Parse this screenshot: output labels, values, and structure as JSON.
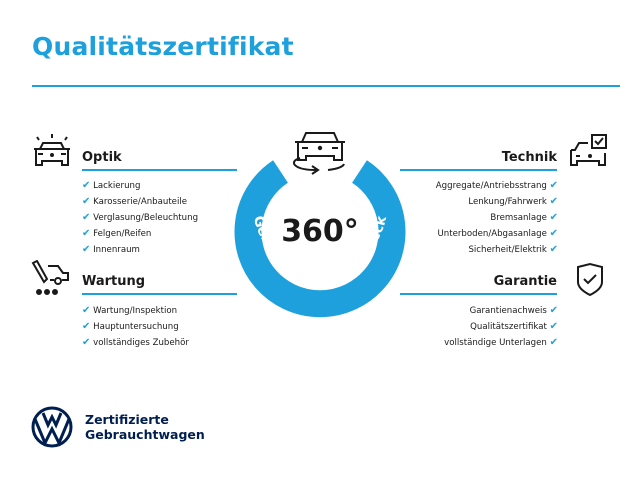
{
  "title": "Qualitätszertifikat",
  "center": {
    "value": "360°",
    "ring_text": "Gebrauchtwagen-Check",
    "icon": "car-rotate-icon"
  },
  "sections": {
    "optik": {
      "title": "Optik",
      "icon": "car-lights-icon",
      "items": [
        "Lackierung",
        "Karosserie/Anbauteile",
        "Verglasung/Beleuchtung",
        "Felgen/Reifen",
        "Innenraum"
      ]
    },
    "wartung": {
      "title": "Wartung",
      "icon": "service-car-icon",
      "items": [
        "Wartung/Inspektion",
        "Hauptuntersuchung",
        "vollständiges Zubehör"
      ]
    },
    "technik": {
      "title": "Technik",
      "icon": "car-checkbox-icon",
      "items": [
        "Aggregate/Antriebsstrang",
        "Lenkung/Fahrwerk",
        "Bremsanlage",
        "Unterboden/Abgasanlage",
        "Sicherheit/Elektrik"
      ]
    },
    "garantie": {
      "title": "Garantie",
      "icon": "shield-check-icon",
      "items": [
        "Garantienachweis",
        "Qualitätszertifikat",
        "vollständige Unterlagen"
      ]
    }
  },
  "check_glyph": "✔",
  "footer": {
    "line1": "Zertifizierte",
    "line2": "Gebrauchtwagen",
    "logo": "vw-logo"
  },
  "colors": {
    "accent": "#1ea0dc",
    "brand_navy": "#001e50",
    "text": "#1a1a1a"
  }
}
